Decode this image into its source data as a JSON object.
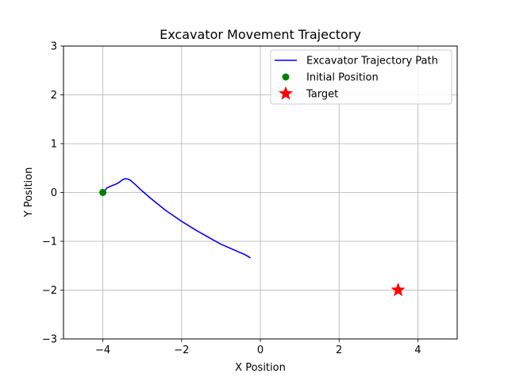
{
  "chart_data": {
    "type": "line",
    "title": "Excavator Movement Trajectory",
    "xlabel": "X Position",
    "ylabel": "Y Position",
    "xlim": [
      -5,
      5
    ],
    "ylim": [
      -3,
      3
    ],
    "xticks": [
      -4,
      -2,
      0,
      2,
      4
    ],
    "yticks": [
      -3,
      -2,
      -1,
      0,
      1,
      2,
      3
    ],
    "xtick_labels": [
      "−4",
      "−2",
      "0",
      "2",
      "4"
    ],
    "ytick_labels": [
      "−3",
      "−2",
      "−1",
      "0",
      "1",
      "2",
      "3"
    ],
    "grid": true,
    "legend_position": "top-right",
    "series": [
      {
        "name": "Excavator Trajectory Path",
        "kind": "line",
        "color": "#0000ff",
        "x": [
          -4.0,
          -3.95,
          -3.9,
          -3.8,
          -3.7,
          -3.6,
          -3.5,
          -3.45,
          -3.4,
          -3.35,
          -3.3,
          -3.2,
          -3.0,
          -2.8,
          -2.6,
          -2.4,
          -2.2,
          -2.0,
          -1.8,
          -1.6,
          -1.4,
          -1.2,
          -1.0,
          -0.8,
          -0.6,
          -0.4,
          -0.25
        ],
        "y": [
          0.0,
          0.04,
          0.09,
          0.13,
          0.16,
          0.2,
          0.26,
          0.28,
          0.28,
          0.27,
          0.25,
          0.18,
          0.03,
          -0.11,
          -0.24,
          -0.37,
          -0.48,
          -0.59,
          -0.69,
          -0.79,
          -0.88,
          -0.97,
          -1.06,
          -1.13,
          -1.2,
          -1.27,
          -1.34
        ]
      },
      {
        "name": "Initial Position",
        "kind": "point",
        "color": "#008000",
        "x": [
          -4.0
        ],
        "y": [
          0.0
        ]
      },
      {
        "name": "Target",
        "kind": "star",
        "color": "#ff0000",
        "x": [
          3.5
        ],
        "y": [
          -2.0
        ]
      }
    ]
  }
}
